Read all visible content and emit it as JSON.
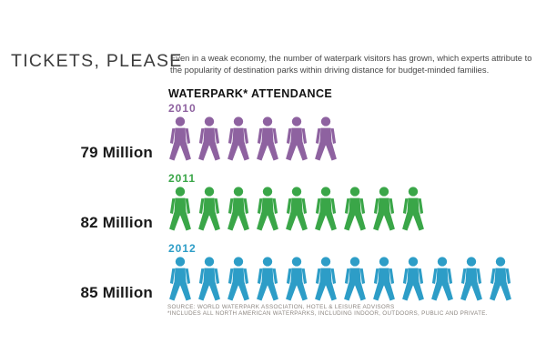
{
  "page": {
    "title": "TICKETS, PLEASE",
    "intro": "Even in a weak economy, the number of waterpark visitors has grown, which experts attribute to the popularity of destination parks within driving distance for budget-minded families.",
    "section_heading": "WATERPARK* ATTENDANCE",
    "source_line1": "SOURCE: WORLD WATERPARK ASSOCIATION, HOTEL & LEISURE ADVISORS",
    "source_line2": "*INCLUDES ALL NORTH AMERICAN WATERPARKS, INCLUDING INDOOR, OUTDOORS, PUBLIC AND PRIVATE."
  },
  "chart_data": {
    "type": "bar",
    "style": "pictogram",
    "title": "WATERPARK* ATTENDANCE",
    "categories": [
      "2010",
      "2011",
      "2012"
    ],
    "values": [
      79,
      82,
      85
    ],
    "unit": "million visitors",
    "value_labels": [
      "79 Million",
      "82 Million",
      "85 Million"
    ],
    "icon": "person",
    "icon_counts": [
      6,
      9,
      12
    ],
    "series_colors": [
      "#8E62A0",
      "#3AA648",
      "#2D9DC7"
    ],
    "legend_position": "none",
    "grid": false
  },
  "rows": [
    {
      "year": "2010",
      "value_label": "79 Million",
      "count": 6,
      "color": "#8E62A0"
    },
    {
      "year": "2011",
      "value_label": "82 Million",
      "count": 9,
      "color": "#3AA648"
    },
    {
      "year": "2012",
      "value_label": "85 Million",
      "count": 12,
      "color": "#2D9DC7"
    }
  ],
  "colors": {
    "purple": "#8E62A0",
    "green": "#3AA648",
    "blue": "#2D9DC7",
    "title_text": "#3C3C3C",
    "source_text": "#8C8680"
  }
}
